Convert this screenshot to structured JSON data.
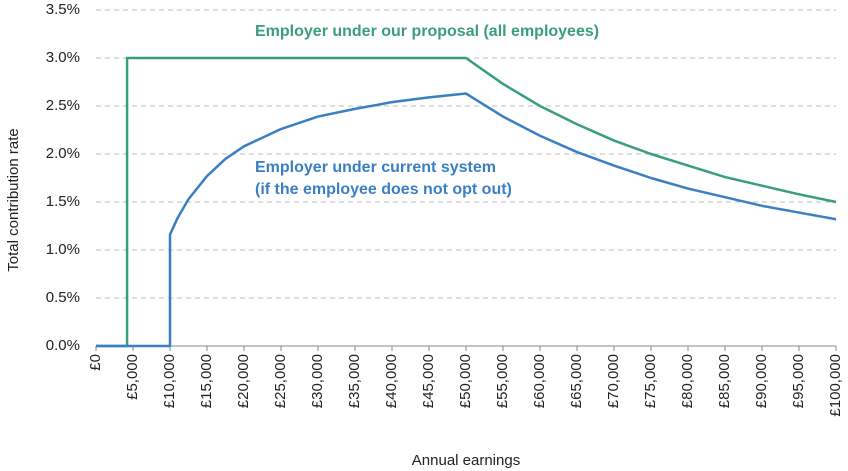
{
  "chart_data": {
    "type": "line",
    "x_label": "Annual earnings",
    "y_label": "Total contribution rate",
    "x": [
      0,
      4200,
      4200,
      10000,
      10000,
      11000,
      12500,
      15000,
      17500,
      20000,
      25000,
      30000,
      35000,
      40000,
      45000,
      50000,
      55000,
      60000,
      65000,
      70000,
      75000,
      80000,
      85000,
      90000,
      95000,
      100000
    ],
    "series": [
      {
        "name": "Employer under our proposal (all employees)",
        "color": "#3a9e77",
        "values": [
          0,
          0,
          3,
          3,
          3,
          3,
          3,
          3,
          3,
          3,
          3,
          3,
          3,
          3,
          3,
          3,
          2.73,
          2.5,
          2.31,
          2.14,
          2,
          1.88,
          1.76,
          1.67,
          1.58,
          1.5
        ]
      },
      {
        "name": "Employer under current system",
        "color": "#3a7fc4",
        "values": [
          0,
          0,
          0,
          0,
          1.16,
          1.33,
          1.53,
          1.77,
          1.95,
          2.08,
          2.26,
          2.39,
          2.47,
          2.54,
          2.59,
          2.63,
          2.39,
          2.19,
          2.02,
          1.88,
          1.75,
          1.64,
          1.55,
          1.46,
          1.39,
          1.32
        ]
      }
    ],
    "annotations": [
      {
        "text": "Employer under our proposal (all employees)",
        "color": "#3a9e77"
      },
      {
        "text": "Employer under current system",
        "color": "#3a7fc4"
      },
      {
        "text": "(if the employee does not opt out)",
        "color": "#3a7fc4"
      }
    ],
    "xlim": [
      0,
      100000
    ],
    "xticks": [
      {
        "value": 0,
        "label": "£0"
      },
      {
        "value": 5000,
        "label": "£5,000"
      },
      {
        "value": 10000,
        "label": "£10,000"
      },
      {
        "value": 15000,
        "label": "£15,000"
      },
      {
        "value": 20000,
        "label": "£20,000"
      },
      {
        "value": 25000,
        "label": "£25,000"
      },
      {
        "value": 30000,
        "label": "£30,000"
      },
      {
        "value": 35000,
        "label": "£35,000"
      },
      {
        "value": 40000,
        "label": "£40,000"
      },
      {
        "value": 45000,
        "label": "£45,000"
      },
      {
        "value": 50000,
        "label": "£50,000"
      },
      {
        "value": 55000,
        "label": "£55,000"
      },
      {
        "value": 60000,
        "label": "£60,000"
      },
      {
        "value": 65000,
        "label": "£65,000"
      },
      {
        "value": 70000,
        "label": "£70,000"
      },
      {
        "value": 75000,
        "label": "£75,000"
      },
      {
        "value": 80000,
        "label": "£80,000"
      },
      {
        "value": 85000,
        "label": "£85,000"
      },
      {
        "value": 90000,
        "label": "£90,000"
      },
      {
        "value": 95000,
        "label": "£95,000"
      },
      {
        "value": 100000,
        "label": "£100,000"
      }
    ],
    "ylim": [
      0,
      3.5
    ],
    "yticks": [
      {
        "value": 0,
        "label": "0.0%"
      },
      {
        "value": 0.5,
        "label": "0.5%"
      },
      {
        "value": 1,
        "label": "1.0%"
      },
      {
        "value": 1.5,
        "label": "1.5%"
      },
      {
        "value": 2,
        "label": "2.0%"
      },
      {
        "value": 2.5,
        "label": "2.5%"
      },
      {
        "value": 3,
        "label": "3.0%"
      },
      {
        "value": 3.5,
        "label": "3.5%"
      }
    ],
    "grid": true
  }
}
